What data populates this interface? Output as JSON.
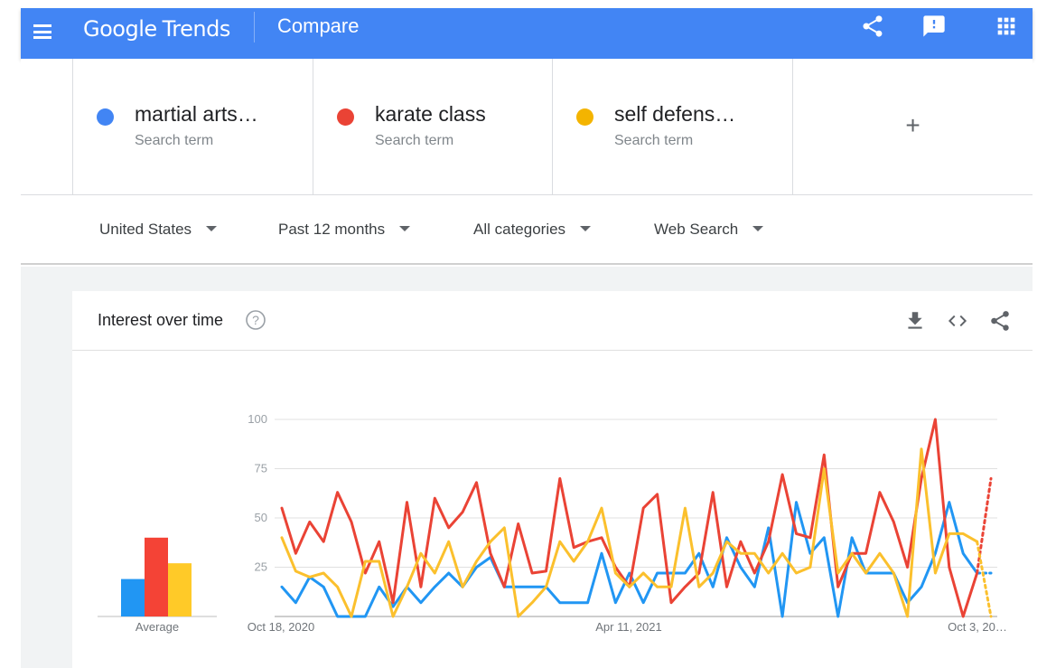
{
  "header": {
    "brand": "Google",
    "product": "Trends",
    "title": "Compare",
    "icons": [
      "menu-icon",
      "share-icon",
      "feedback-icon",
      "apps-icon"
    ]
  },
  "terms": [
    {
      "name": "martial arts…",
      "subtitle": "Search term",
      "color": "#4285f4"
    },
    {
      "name": "karate class",
      "subtitle": "Search term",
      "color": "#ea4335"
    },
    {
      "name": "self defens…",
      "subtitle": "Search term",
      "color": "#f4b400"
    }
  ],
  "add_term": {
    "label": "+"
  },
  "filters": {
    "region": "United States",
    "time": "Past 12 months",
    "category": "All categories",
    "search_type": "Web Search"
  },
  "card": {
    "title": "Interest over time",
    "icons": [
      "help-icon",
      "download-icon",
      "embed-icon",
      "share-icon"
    ]
  },
  "chart_data": [
    {
      "type": "bar",
      "title": "",
      "xlabel": "Average",
      "categories": [
        "martial arts…",
        "karate class",
        "self defens…"
      ],
      "values": [
        19,
        40,
        27
      ],
      "colors": [
        "#2196f3",
        "#f44336",
        "#ffca28"
      ],
      "ylim": [
        0,
        100
      ]
    },
    {
      "type": "line",
      "title": "Interest over time",
      "x_tick_labels": [
        "Oct 18, 2020",
        "Apr 11, 2021",
        "Oct 3, 20…"
      ],
      "y_ticks": [
        25,
        50,
        75,
        100
      ],
      "ylim": [
        0,
        100
      ],
      "grid": true,
      "partial_last_point": true,
      "series": [
        {
          "name": "martial arts…",
          "color": "#2196f3",
          "values": [
            15,
            7,
            20,
            15,
            0,
            0,
            0,
            15,
            5,
            15,
            7,
            15,
            22,
            15,
            25,
            30,
            15,
            15,
            15,
            15,
            7,
            7,
            7,
            32,
            7,
            22,
            7,
            22,
            22,
            22,
            32,
            15,
            40,
            25,
            15,
            45,
            0,
            58,
            32,
            40,
            0,
            40,
            22,
            22,
            22,
            7,
            15,
            32,
            58,
            32,
            22,
            22
          ]
        },
        {
          "name": "karate class",
          "color": "#ea4335",
          "values": [
            55,
            32,
            48,
            38,
            63,
            48,
            22,
            38,
            7,
            58,
            15,
            60,
            45,
            53,
            68,
            32,
            15,
            47,
            22,
            23,
            70,
            35,
            38,
            40,
            25,
            15,
            55,
            62,
            7,
            15,
            22,
            63,
            15,
            38,
            22,
            38,
            72,
            42,
            40,
            82,
            15,
            32,
            32,
            63,
            48,
            25,
            70,
            100,
            25,
            0,
            22,
            70
          ]
        },
        {
          "name": "self defens…",
          "color": "#fbc02d",
          "values": [
            40,
            23,
            20,
            22,
            15,
            0,
            28,
            28,
            0,
            15,
            32,
            22,
            38,
            15,
            28,
            38,
            45,
            0,
            7,
            15,
            38,
            28,
            38,
            55,
            22,
            15,
            22,
            15,
            15,
            55,
            15,
            22,
            38,
            32,
            32,
            22,
            32,
            22,
            25,
            75,
            22,
            32,
            22,
            32,
            22,
            0,
            85,
            22,
            42,
            42,
            38,
            0
          ]
        }
      ]
    }
  ]
}
